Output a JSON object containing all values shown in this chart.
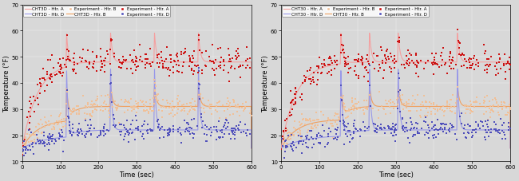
{
  "panels": [
    {
      "label_prefix": "CHT3D",
      "heat_ons": [
        115,
        230,
        345,
        460
      ]
    },
    {
      "label_prefix": "CHT30",
      "heat_ons": [
        155,
        230,
        305,
        460
      ]
    }
  ],
  "xlim": [
    0,
    600
  ],
  "ylim": [
    10,
    70
  ],
  "yticks": [
    10,
    20,
    30,
    40,
    50,
    60,
    70
  ],
  "xticks": [
    0,
    100,
    200,
    300,
    400,
    500,
    600
  ],
  "xlabel": "Time (sec)",
  "ylabel": "Temperature (°F)",
  "color_A_line": "#F4A0A0",
  "color_B_line": "#F0A060",
  "color_D_line": "#9898E8",
  "color_expA": "#CC1111",
  "color_expB": "#F0C098",
  "color_expD": "#5050BB",
  "bg_color": "#D8D8D8",
  "figsize": [
    6.5,
    2.28
  ],
  "dpi": 100,
  "tick_labelsize": 5,
  "label_fontsize": 6,
  "legend_fontsize": 4,
  "base_temp": 15.0,
  "A_initial_ss": 48.0,
  "B_initial_ss": 26.0,
  "D_initial_ss": 20.0,
  "A_pk": 63.0,
  "B_pk": 42.0,
  "D_pk": 56.0,
  "A_after_ss": 48.0,
  "B_after_ss": 31.0,
  "D_after_ss": 22.0,
  "tau_fast": 5.0,
  "tau_medium": 20.0,
  "tau_slow": 40.0,
  "n_dots": 300,
  "dot_noise_A": 2.5,
  "dot_noise_B": 2.0,
  "dot_noise_D": 2.0
}
